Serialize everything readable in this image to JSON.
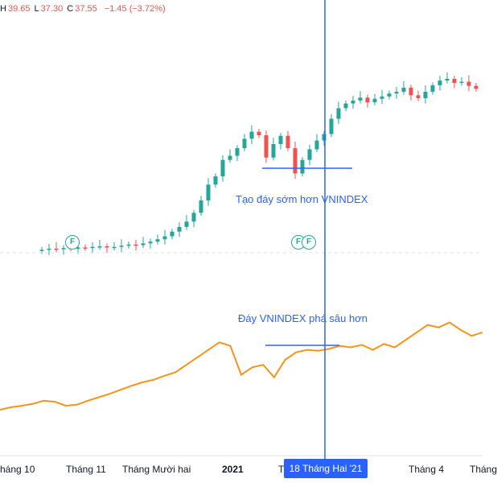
{
  "legend": {
    "high_label": "H",
    "high": "39.65",
    "low_label": "L",
    "low": "37.30",
    "close_label": "C",
    "close": "37.55",
    "change": "−1.45 (−3.72%)"
  },
  "annotations": {
    "stock_note": "Tạo đáy sớm hơn VNINDEX",
    "index_note": "Đáy VNINDEX phá sâu hơn"
  },
  "markers": {
    "flag": "F"
  },
  "x_axis": {
    "labels": [
      "háng 10",
      "Tháng 11",
      "Tháng Mười hai",
      "2021",
      "T",
      "Tháng 4",
      "Tháng"
    ],
    "cursor_label": "18 Tháng Hai '21"
  },
  "colors": {
    "up": "#26a69a",
    "down": "#ef5350",
    "index_line": "#f7931a",
    "crosshair": "#2962ff",
    "annotation": "#2962ff"
  },
  "chart_data": [
    {
      "type": "candlestick",
      "title": "",
      "description_note": "",
      "close_path": [
        8.5,
        8.7,
        8.6,
        8.8,
        8.7,
        8.9,
        8.8,
        9.0,
        9.1,
        8.9,
        9.0,
        9.2,
        9.4,
        9.3,
        9.6,
        9.9,
        10.3,
        10.8,
        11.6,
        12.4,
        13.3,
        14.8,
        16.9,
        19.6,
        21.0,
        23.8,
        24.5,
        25.8,
        27.4,
        28.6,
        28.0,
        24.2,
        26.5,
        27.9,
        25.8,
        21.5,
        23.8,
        25.6,
        27.1,
        28.2,
        30.8,
        32.6,
        33.4,
        33.9,
        34.4,
        33.6,
        34.2,
        34.6,
        35.1,
        35.4,
        36.1,
        34.8,
        34.3,
        35.4,
        36.5,
        37.3,
        37.6,
        36.9,
        37.1,
        36.4,
        35.9
      ],
      "high": 39.65,
      "low": 37.3,
      "close": 37.55,
      "change": -1.45,
      "change_pct": -3.72
    },
    {
      "type": "line",
      "values": [
        1050,
        1055,
        1058,
        1062,
        1068,
        1066,
        1058,
        1060,
        1068,
        1075,
        1082,
        1090,
        1098,
        1105,
        1110,
        1118,
        1125,
        1140,
        1155,
        1170,
        1185,
        1178,
        1120,
        1135,
        1140,
        1115,
        1150,
        1165,
        1170,
        1168,
        1172,
        1178,
        1175,
        1180,
        1170,
        1182,
        1175,
        1190,
        1205,
        1220,
        1215,
        1225,
        1210,
        1198,
        1205
      ],
      "series_name": ""
    }
  ]
}
